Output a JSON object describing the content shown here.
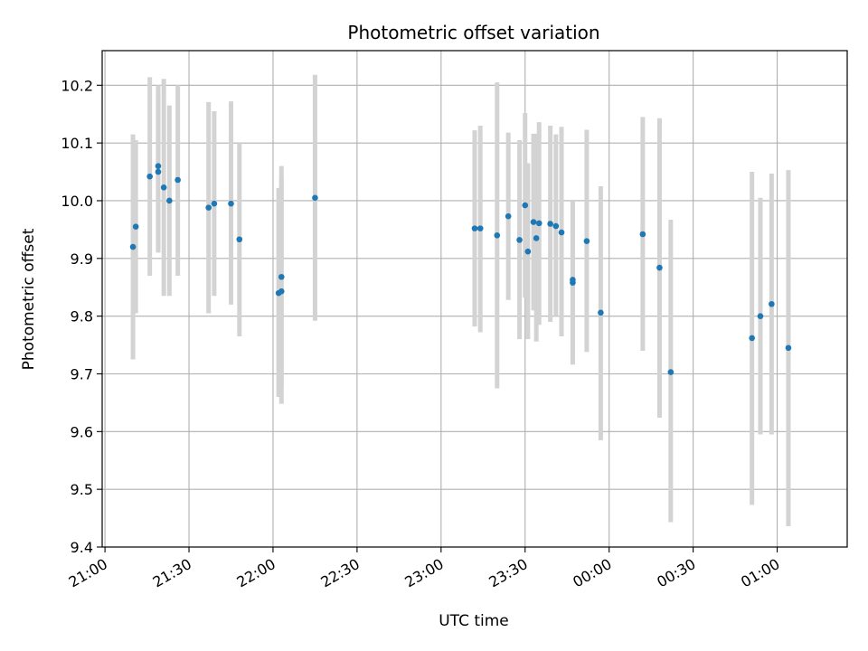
{
  "chart_data": {
    "type": "scatter",
    "title": "Photometric offset variation",
    "xlabel": "UTC time",
    "ylabel": "Photometric offset",
    "x_axis_kind": "time",
    "x_tick_values": [
      "21:00",
      "21:30",
      "22:00",
      "22:30",
      "23:00",
      "23:30",
      "00:00",
      "00:30",
      "01:00"
    ],
    "xlim": [
      "20:59",
      "01:25"
    ],
    "ylim": [
      9.4,
      10.26
    ],
    "y_ticks": [
      9.4,
      9.5,
      9.6,
      9.7,
      9.8,
      9.9,
      10.0,
      10.1,
      10.2
    ],
    "y_tick_labels": [
      "9.4",
      "9.5",
      "9.6",
      "9.7",
      "9.8",
      "9.9",
      "10.0",
      "10.1",
      "10.2"
    ],
    "grid": true,
    "marker_color": "#1f77b4",
    "errorbar_color": "#d3d3d3",
    "points": [
      {
        "t": "21:10",
        "y": 9.92,
        "lo": 9.725,
        "hi": 10.115
      },
      {
        "t": "21:11",
        "y": 9.955,
        "lo": 9.805,
        "hi": 10.105
      },
      {
        "t": "21:16",
        "y": 10.042,
        "lo": 9.87,
        "hi": 10.214
      },
      {
        "t": "21:19",
        "y": 10.06,
        "lo": 9.91,
        "hi": 10.2
      },
      {
        "t": "21:19",
        "y": 10.05,
        "lo": 9.915,
        "hi": 10.185
      },
      {
        "t": "21:21",
        "y": 10.023,
        "lo": 9.835,
        "hi": 10.211
      },
      {
        "t": "21:23",
        "y": 10.0,
        "lo": 9.835,
        "hi": 10.165
      },
      {
        "t": "21:26",
        "y": 10.036,
        "lo": 9.87,
        "hi": 10.2
      },
      {
        "t": "21:37",
        "y": 9.988,
        "lo": 9.805,
        "hi": 10.171
      },
      {
        "t": "21:39",
        "y": 9.995,
        "lo": 9.835,
        "hi": 10.155
      },
      {
        "t": "21:45",
        "y": 9.995,
        "lo": 9.82,
        "hi": 10.172
      },
      {
        "t": "21:48",
        "y": 9.933,
        "lo": 9.765,
        "hi": 10.1
      },
      {
        "t": "22:02",
        "y": 9.84,
        "lo": 9.66,
        "hi": 10.022
      },
      {
        "t": "22:03",
        "y": 9.843,
        "lo": 9.648,
        "hi": 10.04
      },
      {
        "t": "22:03",
        "y": 9.868,
        "lo": 9.675,
        "hi": 10.06
      },
      {
        "t": "22:15",
        "y": 10.005,
        "lo": 9.792,
        "hi": 10.218
      },
      {
        "t": "23:12",
        "y": 9.952,
        "lo": 9.782,
        "hi": 10.122
      },
      {
        "t": "23:14",
        "y": 9.952,
        "lo": 9.772,
        "hi": 10.13
      },
      {
        "t": "23:20",
        "y": 9.94,
        "lo": 9.675,
        "hi": 10.205
      },
      {
        "t": "23:24",
        "y": 9.973,
        "lo": 9.828,
        "hi": 10.118
      },
      {
        "t": "23:28",
        "y": 9.932,
        "lo": 9.76,
        "hi": 10.105
      },
      {
        "t": "23:30",
        "y": 9.992,
        "lo": 9.832,
        "hi": 10.152
      },
      {
        "t": "23:31",
        "y": 9.912,
        "lo": 9.76,
        "hi": 10.065
      },
      {
        "t": "23:33",
        "y": 9.963,
        "lo": 9.81,
        "hi": 10.116
      },
      {
        "t": "23:34",
        "y": 9.935,
        "lo": 9.756,
        "hi": 10.116
      },
      {
        "t": "23:35",
        "y": 9.961,
        "lo": 9.785,
        "hi": 10.136
      },
      {
        "t": "23:39",
        "y": 9.96,
        "lo": 9.79,
        "hi": 10.13
      },
      {
        "t": "23:41",
        "y": 9.956,
        "lo": 9.8,
        "hi": 10.115
      },
      {
        "t": "23:43",
        "y": 9.945,
        "lo": 9.765,
        "hi": 10.128
      },
      {
        "t": "23:47",
        "y": 9.858,
        "lo": 9.716,
        "hi": 10.0
      },
      {
        "t": "23:47",
        "y": 9.863,
        "lo": 9.725,
        "hi": 10.0
      },
      {
        "t": "23:52",
        "y": 9.93,
        "lo": 9.738,
        "hi": 10.123
      },
      {
        "t": "23:57",
        "y": 9.806,
        "lo": 9.585,
        "hi": 10.025
      },
      {
        "t": "00:12",
        "y": 9.942,
        "lo": 9.74,
        "hi": 10.145
      },
      {
        "t": "00:18",
        "y": 9.884,
        "lo": 9.624,
        "hi": 10.143
      },
      {
        "t": "00:22",
        "y": 9.703,
        "lo": 9.443,
        "hi": 9.967
      },
      {
        "t": "00:51",
        "y": 9.762,
        "lo": 9.473,
        "hi": 10.05
      },
      {
        "t": "00:54",
        "y": 9.8,
        "lo": 9.595,
        "hi": 10.005
      },
      {
        "t": "00:58",
        "y": 9.821,
        "lo": 9.595,
        "hi": 10.047
      },
      {
        "t": "01:04",
        "y": 9.745,
        "lo": 9.436,
        "hi": 10.053
      }
    ]
  }
}
